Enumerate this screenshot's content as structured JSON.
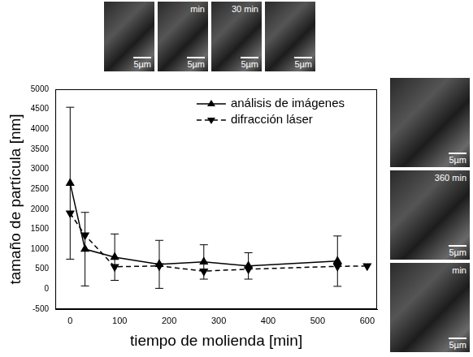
{
  "chart_data": {
    "type": "line",
    "x_label": "tiempo de molienda [min]",
    "y_label": "tamaño de partícula [nm]",
    "x": [
      0,
      30,
      90,
      180,
      270,
      360,
      540,
      600
    ],
    "series": [
      {
        "name": "análisis de imágenes",
        "color": "#000000",
        "marker": "triangle-up",
        "line_style": "solid",
        "values": [
          2650,
          1000,
          800,
          620,
          680,
          580,
          700,
          null
        ],
        "errors": [
          1900,
          920,
          580,
          600,
          430,
          330,
          630,
          null
        ]
      },
      {
        "name": "difracción láser",
        "color": "#000000",
        "marker": "triangle-down",
        "line_style": "dashed",
        "values": [
          1900,
          1350,
          560,
          580,
          450,
          500,
          570,
          580
        ]
      }
    ],
    "xlim": [
      -30,
      620
    ],
    "xticks": [
      0,
      100,
      200,
      300,
      400,
      500,
      600
    ],
    "ylim": [
      -500,
      5000
    ],
    "yticks": [
      -500,
      0,
      500,
      1000,
      1500,
      2000,
      2500,
      3000,
      3500,
      4000,
      4500,
      5000
    ],
    "grid": false,
    "legend": "upper right",
    "micrographs": [
      {
        "position": "top",
        "scale_bar": "5µm"
      },
      {
        "position": "top",
        "label": "min",
        "scale_bar": "5µm"
      },
      {
        "position": "top",
        "label": "30 min",
        "scale_bar": "5µm"
      },
      {
        "position": "top",
        "scale_bar": "5µm"
      },
      {
        "position": "right",
        "scale_bar": "5µm"
      },
      {
        "position": "right",
        "label": "360 min",
        "scale_bar": "5µm"
      },
      {
        "position": "right",
        "label": "min",
        "scale_bar": "5µm"
      }
    ]
  }
}
